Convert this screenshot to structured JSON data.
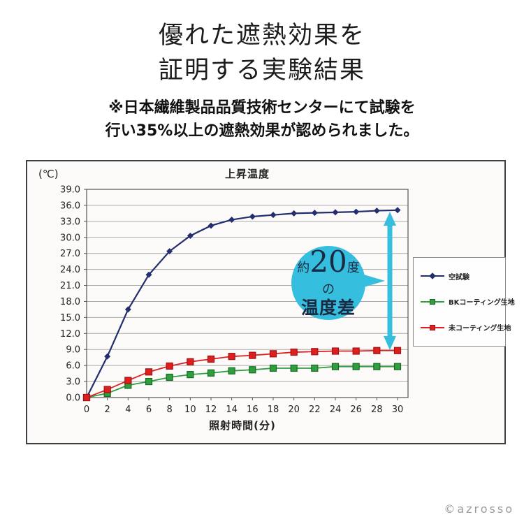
{
  "header": {
    "title_line1": "優れた遮熱効果を",
    "title_line2": "証明する実験結果",
    "note_line1": "※日本繊維製品品質技術センターにて試験を",
    "note_line2": "行い35%以上の遮熱効果が認められました。"
  },
  "chart_data": {
    "type": "line",
    "title": "上昇温度",
    "y_unit_label": "(℃)",
    "xlabel": "照射時間(分)",
    "ylabel": "",
    "xlim": [
      0,
      30
    ],
    "ylim": [
      0,
      39
    ],
    "x_tick_step": 2,
    "y_tick_step": 3,
    "grid": true,
    "legend_position": "right",
    "x": [
      0,
      2,
      4,
      6,
      8,
      10,
      12,
      14,
      16,
      18,
      20,
      22,
      24,
      26,
      28,
      30
    ],
    "series": [
      {
        "name": "空試験",
        "color": "#232e6e",
        "marker": "diamond",
        "width": 2.2,
        "values": [
          0.0,
          7.7,
          16.5,
          23.0,
          27.4,
          30.3,
          32.2,
          33.3,
          33.9,
          34.2,
          34.5,
          34.6,
          34.7,
          34.8,
          35.0,
          35.1
        ]
      },
      {
        "name": "BKコーティング生地",
        "color": "#2f9e3f",
        "border": "#176a23",
        "marker": "square",
        "width": 1.8,
        "values": [
          0.0,
          0.8,
          2.3,
          3.0,
          3.8,
          4.3,
          4.6,
          5.0,
          5.2,
          5.5,
          5.5,
          5.5,
          5.8,
          5.8,
          5.8,
          5.8
        ]
      },
      {
        "name": "未コーティング生地",
        "color": "#dd1f1f",
        "border": "#a31212",
        "marker": "square",
        "width": 1.8,
        "values": [
          0.0,
          1.5,
          3.2,
          4.8,
          5.9,
          6.7,
          7.2,
          7.7,
          7.9,
          8.2,
          8.5,
          8.6,
          8.7,
          8.7,
          8.8,
          8.8
        ]
      }
    ]
  },
  "annotation": {
    "prefix": "約",
    "value": "20",
    "unit": "度",
    "middle": "の",
    "label": "温度差"
  },
  "watermark": "©azrosso",
  "colors": {
    "cyan": "#35bedd",
    "navy-text": "#1b2a42",
    "grid": "#a9a9a9",
    "axis": "#555555"
  }
}
